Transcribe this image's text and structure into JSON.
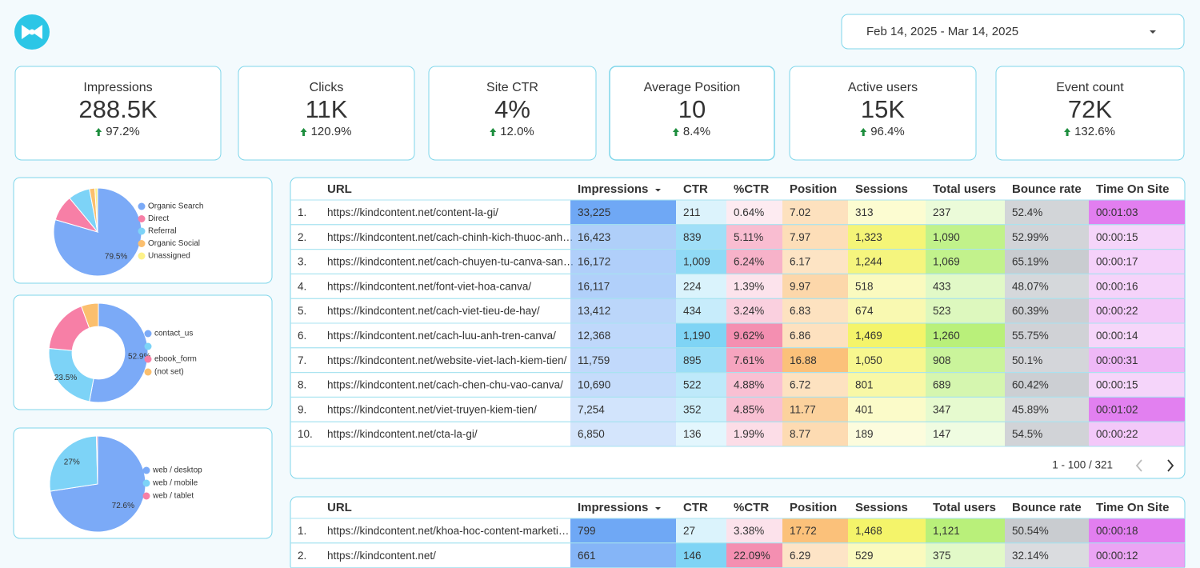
{
  "date_range": "Feb 14, 2025 - Mar 14, 2025",
  "kpis": [
    {
      "label": "Impressions",
      "value": "288.5K",
      "change": "97.2%"
    },
    {
      "label": "Clicks",
      "value": "11K",
      "change": "120.9%"
    },
    {
      "label": "Site CTR",
      "value": "4%",
      "change": "12.0%"
    },
    {
      "label": "Average Position",
      "value": "10",
      "change": "8.4%"
    },
    {
      "label": "Active users",
      "value": "15K",
      "change": "96.4%"
    },
    {
      "label": "Event count",
      "value": "72K",
      "change": "132.6%"
    }
  ],
  "chart_data": [
    {
      "type": "pie",
      "labels": [
        "Organic Search",
        "Direct",
        "Referral",
        "Organic Social",
        "Unassigned"
      ],
      "values": [
        79.5,
        9.5,
        8,
        2,
        1
      ],
      "value_labels": [
        "79.5%",
        null,
        null,
        null,
        null
      ],
      "colors": [
        "#7baaf7",
        "#f77fa6",
        "#7dd3f7",
        "#fbbf6e",
        "#fdf28a"
      ],
      "donut": false
    },
    {
      "type": "pie",
      "labels": [
        "contact_us",
        null,
        "ebook_form",
        "(not set)"
      ],
      "values": [
        52.9,
        23.5,
        18,
        5.6
      ],
      "value_labels": [
        "52.9%",
        "23.5%",
        null,
        null
      ],
      "colors": [
        "#7baaf7",
        "#7dd3f7",
        "#f77fa6",
        "#fbbf6e"
      ],
      "donut": true
    },
    {
      "type": "pie",
      "labels": [
        "web / desktop",
        "web / mobile",
        "web / tablet"
      ],
      "values": [
        72.6,
        27,
        0.4
      ],
      "value_labels": [
        "72.6%",
        "27%",
        null
      ],
      "colors": [
        "#7baaf7",
        "#7dd3f7",
        "#f77fa6"
      ],
      "donut": false
    }
  ],
  "tables": [
    {
      "columns": [
        "URL",
        "Impressions",
        "CTR",
        "%CTR",
        "Position",
        "Sessions",
        "Total users",
        "Bounce rate",
        "Time On Site"
      ],
      "rows": [
        [
          "1.",
          "https://kindcontent.net/content-la-gi/",
          "33,225",
          "211",
          "0.64%",
          "7.02",
          "313",
          "237",
          "52.4%",
          "00:01:03"
        ],
        [
          "2.",
          "https://kindcontent.net/cach-chinh-kich-thuoc-anh…",
          "16,423",
          "839",
          "5.11%",
          "7.97",
          "1,323",
          "1,090",
          "52.99%",
          "00:00:15"
        ],
        [
          "3.",
          "https://kindcontent.net/cach-chuyen-tu-canva-san…",
          "16,172",
          "1,009",
          "6.24%",
          "6.17",
          "1,244",
          "1,069",
          "65.19%",
          "00:00:17"
        ],
        [
          "4.",
          "https://kindcontent.net/font-viet-hoa-canva/",
          "16,117",
          "224",
          "1.39%",
          "9.97",
          "518",
          "433",
          "48.07%",
          "00:00:16"
        ],
        [
          "5.",
          "https://kindcontent.net/cach-viet-tieu-de-hay/",
          "13,412",
          "434",
          "3.24%",
          "6.83",
          "674",
          "523",
          "60.39%",
          "00:00:22"
        ],
        [
          "6.",
          "https://kindcontent.net/cach-luu-anh-tren-canva/",
          "12,368",
          "1,190",
          "9.62%",
          "6.86",
          "1,469",
          "1,260",
          "55.75%",
          "00:00:14"
        ],
        [
          "7.",
          "https://kindcontent.net/website-viet-lach-kiem-tien/",
          "11,759",
          "895",
          "7.61%",
          "16.88",
          "1,050",
          "908",
          "50.1%",
          "00:00:31"
        ],
        [
          "8.",
          "https://kindcontent.net/cach-chen-chu-vao-canva/",
          "10,690",
          "522",
          "4.88%",
          "6.72",
          "801",
          "689",
          "60.42%",
          "00:00:15"
        ],
        [
          "9.",
          "https://kindcontent.net/viet-truyen-kiem-tien/",
          "7,254",
          "352",
          "4.85%",
          "11.77",
          "401",
          "347",
          "45.89%",
          "00:01:02"
        ],
        [
          "10.",
          "https://kindcontent.net/cta-la-gi/",
          "6,850",
          "136",
          "1.99%",
          "8.77",
          "189",
          "147",
          "54.5%",
          "00:00:22"
        ]
      ],
      "pager": "1 - 100 / 321"
    },
    {
      "columns": [
        "URL",
        "Impressions",
        "CTR",
        "%CTR",
        "Position",
        "Sessions",
        "Total users",
        "Bounce rate",
        "Time On Site"
      ],
      "rows": [
        [
          "1.",
          "https://kindcontent.net/khoa-hoc-content-marketi…",
          "799",
          "27",
          "3.38%",
          "17.72",
          "1,468",
          "1,121",
          "50.54%",
          "00:00:18"
        ],
        [
          "2.",
          "https://kindcontent.net/",
          "661",
          "146",
          "22.09%",
          "6.29",
          "529",
          "375",
          "32.14%",
          "00:00:12"
        ]
      ]
    }
  ]
}
